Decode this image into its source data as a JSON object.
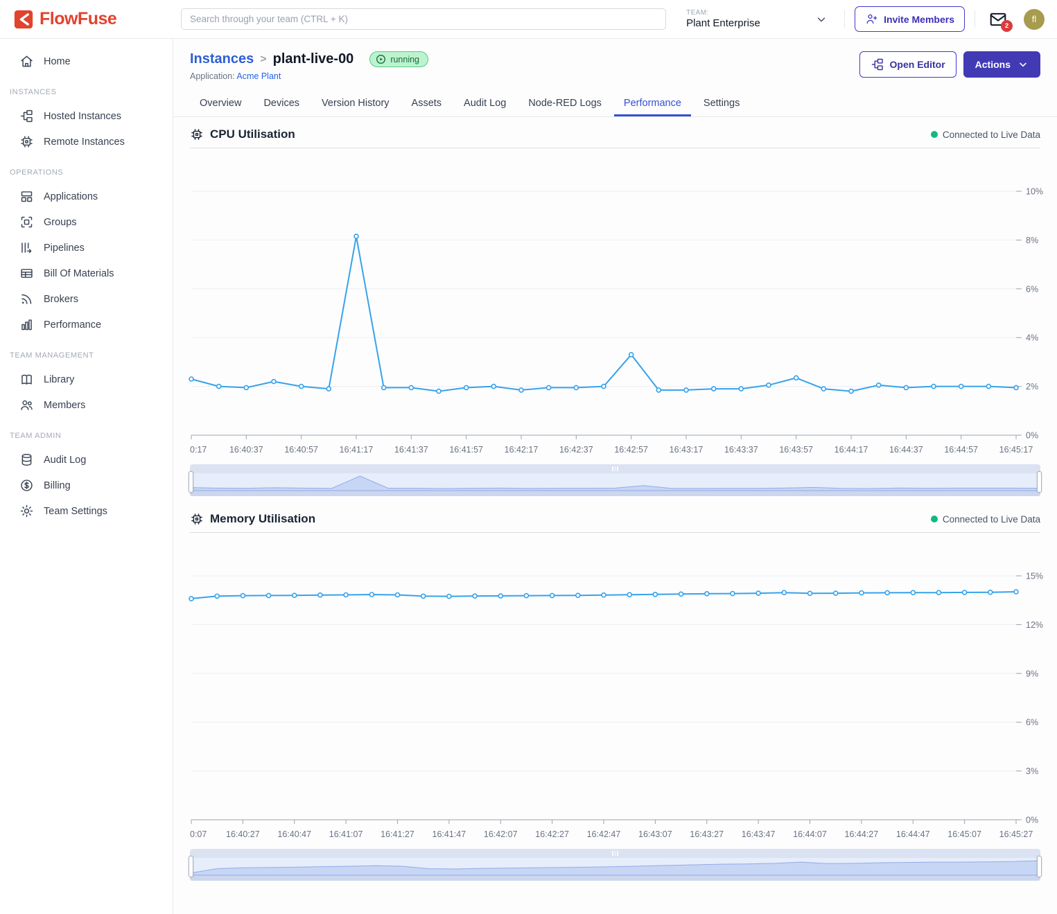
{
  "header": {
    "logo_text": "FlowFuse",
    "search_placeholder": "Search through your team (CTRL + K)",
    "team_label": "TEAM:",
    "team_name": "Plant Enterprise",
    "invite_button": "Invite Members",
    "notification_count": "2",
    "avatar_initials": "fl"
  },
  "sidebar": {
    "items": [
      {
        "type": "link",
        "label": "Home",
        "icon": "home-icon"
      },
      {
        "type": "section",
        "label": "INSTANCES"
      },
      {
        "type": "link",
        "label": "Hosted Instances",
        "icon": "flow-icon"
      },
      {
        "type": "link",
        "label": "Remote Instances",
        "icon": "chip-icon"
      },
      {
        "type": "section",
        "label": "OPERATIONS"
      },
      {
        "type": "link",
        "label": "Applications",
        "icon": "windows-icon"
      },
      {
        "type": "link",
        "label": "Groups",
        "icon": "chip-frame-icon"
      },
      {
        "type": "link",
        "label": "Pipelines",
        "icon": "pipelines-icon"
      },
      {
        "type": "link",
        "label": "Bill Of Materials",
        "icon": "table-icon"
      },
      {
        "type": "link",
        "label": "Brokers",
        "icon": "rss-icon"
      },
      {
        "type": "link",
        "label": "Performance",
        "icon": "bar-chart-icon"
      },
      {
        "type": "section",
        "label": "TEAM MANAGEMENT"
      },
      {
        "type": "link",
        "label": "Library",
        "icon": "book-icon"
      },
      {
        "type": "link",
        "label": "Members",
        "icon": "users-icon"
      },
      {
        "type": "section",
        "label": "TEAM ADMIN"
      },
      {
        "type": "link",
        "label": "Audit Log",
        "icon": "database-icon"
      },
      {
        "type": "link",
        "label": "Billing",
        "icon": "dollar-icon"
      },
      {
        "type": "link",
        "label": "Team Settings",
        "icon": "gear-icon"
      }
    ]
  },
  "page": {
    "breadcrumb_root": "Instances",
    "breadcrumb_separator": ">",
    "instance_name": "plant-live-00",
    "status_badge": "running",
    "application_label": "Application:",
    "application_name": "Acme Plant",
    "open_editor_button": "Open Editor",
    "actions_button": "Actions"
  },
  "tabs": [
    {
      "label": "Overview"
    },
    {
      "label": "Devices"
    },
    {
      "label": "Version History"
    },
    {
      "label": "Assets"
    },
    {
      "label": "Audit Log"
    },
    {
      "label": "Node-RED Logs"
    },
    {
      "label": "Performance",
      "active": true
    },
    {
      "label": "Settings"
    }
  ],
  "chart_data": [
    {
      "id": "cpu",
      "type": "line",
      "title": "CPU Utilisation",
      "status": "Connected to Live Data",
      "line_color": "#36A2EB",
      "ylim": [
        0,
        10
      ],
      "y_tick_values": [
        0,
        2,
        4,
        6,
        8,
        10
      ],
      "y_tick_labels": [
        "0%",
        "2%",
        "4%",
        "6%",
        "8%",
        "10%"
      ],
      "x_tick_labels": [
        "0:17",
        "16:40:37",
        "16:40:57",
        "16:41:17",
        "16:41:37",
        "16:41:57",
        "16:42:17",
        "16:42:37",
        "16:42:57",
        "16:43:17",
        "16:43:37",
        "16:43:57",
        "16:44:17",
        "16:44:37",
        "16:44:57",
        "16:45:17"
      ],
      "x_label_every_n_points": 2,
      "values": [
        2.3,
        2.0,
        1.95,
        2.2,
        2.0,
        1.9,
        8.15,
        1.95,
        1.95,
        1.8,
        1.95,
        2.0,
        1.85,
        1.95,
        1.95,
        2.0,
        3.3,
        1.85,
        1.85,
        1.9,
        1.9,
        2.05,
        2.35,
        1.9,
        1.8,
        2.05,
        1.95,
        2.0,
        2.0,
        2.0,
        1.95
      ]
    },
    {
      "id": "memory",
      "type": "line",
      "title": "Memory Utilisation",
      "status": "Connected to Live Data",
      "line_color": "#36A2EB",
      "ylim": [
        0,
        15
      ],
      "y_tick_values": [
        0,
        3,
        6,
        9,
        12,
        15
      ],
      "y_tick_labels": [
        "0%",
        "3%",
        "6%",
        "9%",
        "12%",
        "15%"
      ],
      "x_tick_labels": [
        "0:07",
        "16:40:27",
        "16:40:47",
        "16:41:07",
        "16:41:27",
        "16:41:47",
        "16:42:07",
        "16:42:27",
        "16:42:47",
        "16:43:07",
        "16:43:27",
        "16:43:47",
        "16:44:07",
        "16:44:27",
        "16:44:47",
        "16:45:07",
        "16:45:27"
      ],
      "x_label_every_n_points": 2,
      "values": [
        13.6,
        13.75,
        13.78,
        13.79,
        13.8,
        13.82,
        13.83,
        13.85,
        13.83,
        13.75,
        13.74,
        13.76,
        13.77,
        13.78,
        13.79,
        13.8,
        13.82,
        13.84,
        13.86,
        13.88,
        13.9,
        13.91,
        13.93,
        13.97,
        13.92,
        13.93,
        13.95,
        13.96,
        13.97,
        13.97,
        13.98,
        13.99,
        14.02
      ]
    }
  ]
}
